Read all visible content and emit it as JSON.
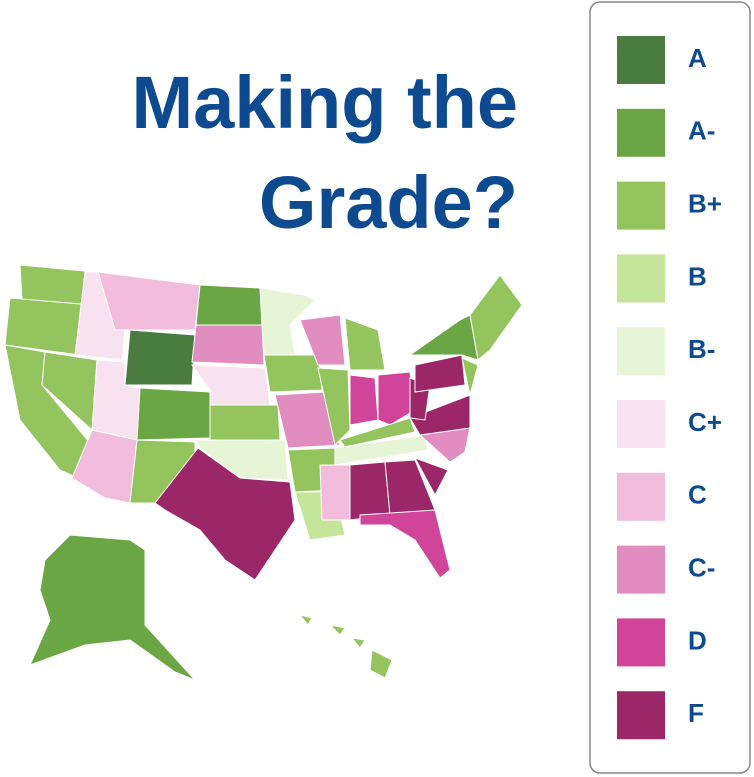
{
  "header": {
    "title_lines": [
      "Making the",
      "Grade?"
    ]
  },
  "legend": {
    "items": [
      {
        "label": "A",
        "color": "#4a7c3f"
      },
      {
        "label": "A-",
        "color": "#6aa744"
      },
      {
        "label": "B+",
        "color": "#93c45e"
      },
      {
        "label": "B",
        "color": "#c5e59b"
      },
      {
        "label": "B-",
        "color": "#e6f5d6"
      },
      {
        "label": "C+",
        "color": "#f9e2ef"
      },
      {
        "label": "C",
        "color": "#f2bddc"
      },
      {
        "label": "C-",
        "color": "#e18dbf"
      },
      {
        "label": "D",
        "color": "#d0459a"
      },
      {
        "label": "F",
        "color": "#9b2769"
      }
    ]
  }
}
